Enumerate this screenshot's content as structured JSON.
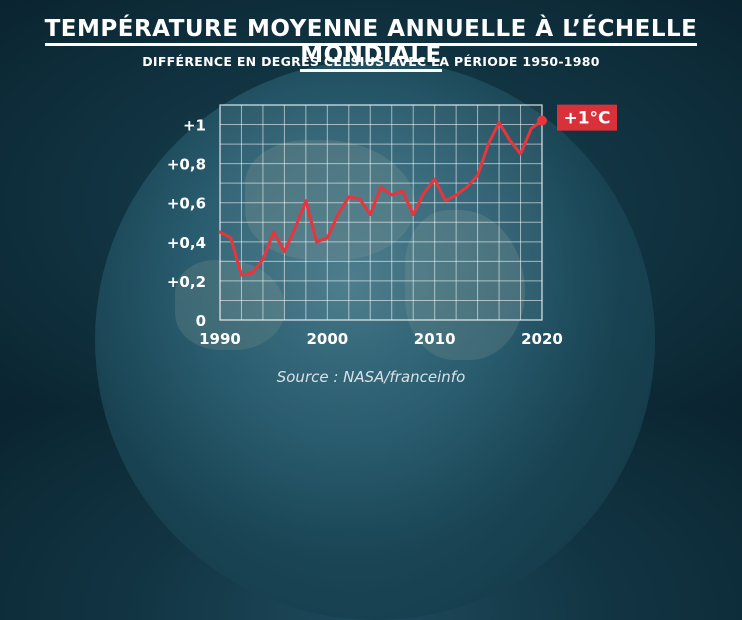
{
  "title": "TEMPÉRATURE MOYENNE ANNUELLE À L’ÉCHELLE MONDIALE",
  "subtitle": "DIFFÉRENCE EN DEGRÉS CELSIUS AVEC LA PÉRIODE 1950-1980",
  "source": "Source : NASA/franceinfo",
  "colors": {
    "line": "#e8353d",
    "grid": "#ffffff",
    "text": "#ffffff",
    "badge": "#d9313a"
  },
  "chart_data": {
    "type": "line",
    "title": "TEMPÉRATURE MOYENNE ANNUELLE À L’ÉCHELLE MONDIALE",
    "subtitle": "DIFFÉRENCE EN DEGRÉS CELSIUS AVEC LA PÉRIODE 1950-1980",
    "xlabel": "",
    "ylabel": "",
    "xlim": [
      1990,
      2020
    ],
    "ylim": [
      0,
      1.1
    ],
    "grid": true,
    "x_ticks": [
      1990,
      2000,
      2010,
      2020
    ],
    "x_tick_labels": [
      "1990",
      "2000",
      "2010",
      "2020"
    ],
    "y_ticks": [
      0,
      0.2,
      0.4,
      0.6,
      0.8,
      1
    ],
    "y_tick_labels": [
      "0",
      "+0,2",
      "+0,4",
      "+0,6",
      "+0,8",
      "+1"
    ],
    "annotation": "+1°C",
    "series": [
      {
        "x": [
          1990,
          1991,
          1992,
          1993,
          1994,
          1995,
          1996,
          1997,
          1998,
          1999,
          2000,
          2001,
          2002,
          2003,
          2004,
          2005,
          2006,
          2007,
          2008,
          2009,
          2010,
          2011,
          2012,
          2013,
          2014,
          2015,
          2016,
          2017,
          2018,
          2019,
          2020
        ],
        "y": [
          0.45,
          0.42,
          0.23,
          0.24,
          0.31,
          0.45,
          0.35,
          0.47,
          0.61,
          0.4,
          0.42,
          0.54,
          0.63,
          0.62,
          0.54,
          0.68,
          0.64,
          0.66,
          0.54,
          0.65,
          0.72,
          0.61,
          0.64,
          0.68,
          0.74,
          0.9,
          1.01,
          0.92,
          0.85,
          0.98,
          1.02
        ]
      }
    ]
  }
}
